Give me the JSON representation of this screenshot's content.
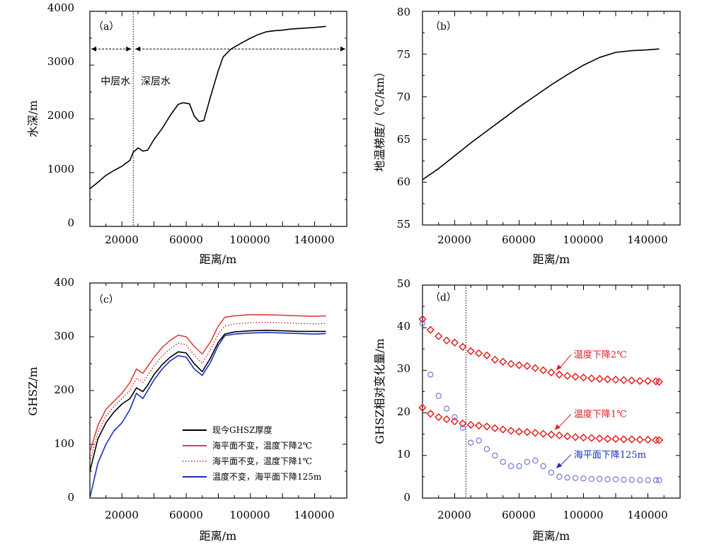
{
  "figure_title": "",
  "chart_data": [
    {
      "id": "a",
      "type": "line",
      "panel_label": "（a）",
      "xlabel": "距离/m",
      "ylabel": "水深/m",
      "xlim": [
        0,
        160000
      ],
      "ylim": [
        0,
        4000
      ],
      "xticks": [
        20000,
        60000,
        100000,
        140000
      ],
      "yticks": [
        0,
        1000,
        2000,
        3000,
        4000
      ],
      "grid": false,
      "divider_x": 27000,
      "range_arrow_y": 3300,
      "region_labels": [
        {
          "text": "中层水",
          "x": 16000,
          "y": 2640
        },
        {
          "text": "深层水",
          "x": 41000,
          "y": 2640
        }
      ],
      "series": [
        {
          "color": "#000000",
          "x": [
            0,
            5000,
            10000,
            15000,
            20000,
            25000,
            27000,
            30000,
            33000,
            36000,
            40000,
            45000,
            50000,
            55000,
            58000,
            62000,
            65000,
            68000,
            71000,
            75000,
            80000,
            83000,
            88000,
            95000,
            100000,
            105000,
            110000,
            115000,
            120000,
            125000,
            130000,
            135000,
            140000,
            147000
          ],
          "y": [
            700,
            820,
            950,
            1040,
            1120,
            1230,
            1380,
            1460,
            1400,
            1420,
            1620,
            1820,
            2060,
            2270,
            2300,
            2280,
            2050,
            1950,
            1970,
            2400,
            2900,
            3150,
            3300,
            3420,
            3500,
            3570,
            3620,
            3640,
            3650,
            3670,
            3680,
            3690,
            3700,
            3720
          ]
        }
      ]
    },
    {
      "id": "b",
      "type": "line",
      "panel_label": "（b）",
      "xlabel": "距离/m",
      "ylabel": "地温梯度/（℃/km）",
      "xlim": [
        0,
        160000
      ],
      "ylim": [
        55,
        80
      ],
      "xticks": [
        20000,
        60000,
        100000,
        140000
      ],
      "yticks": [
        55,
        60,
        65,
        70,
        75,
        80
      ],
      "grid": false,
      "series": [
        {
          "color": "#000000",
          "x": [
            0,
            10000,
            20000,
            30000,
            40000,
            50000,
            60000,
            70000,
            80000,
            90000,
            100000,
            110000,
            120000,
            130000,
            140000,
            147000
          ],
          "y": [
            60.3,
            61.6,
            63.1,
            64.6,
            66.0,
            67.4,
            68.8,
            70.1,
            71.4,
            72.6,
            73.7,
            74.6,
            75.2,
            75.4,
            75.5,
            75.6
          ]
        }
      ]
    },
    {
      "id": "c",
      "type": "line",
      "panel_label": "（c）",
      "xlabel": "距离/m",
      "ylabel": "GHSZ/m",
      "xlim": [
        0,
        160000
      ],
      "ylim": [
        0,
        400
      ],
      "xticks": [
        20000,
        60000,
        100000,
        140000
      ],
      "yticks": [
        0,
        100,
        200,
        300,
        400
      ],
      "grid": false,
      "legend_position": "lower-right",
      "x": [
        0,
        5000,
        10000,
        15000,
        20000,
        25000,
        29000,
        33000,
        36000,
        40000,
        45000,
        50000,
        55000,
        60000,
        65000,
        70000,
        75000,
        80000,
        84000,
        90000,
        100000,
        110000,
        120000,
        130000,
        140000,
        147000
      ],
      "series": [
        {
          "name": "现今GHSZ厚度",
          "color": "#000000",
          "dash": "solid",
          "values": [
            50,
            110,
            140,
            160,
            175,
            185,
            205,
            198,
            210,
            230,
            248,
            262,
            272,
            270,
            250,
            235,
            260,
            290,
            305,
            309,
            311,
            312,
            311,
            310,
            310,
            310
          ]
        },
        {
          "name": "海平面不变，温度下降2℃",
          "color": "#e04040",
          "dash": "solid",
          "values": [
            85,
            135,
            165,
            180,
            195,
            215,
            240,
            232,
            245,
            262,
            280,
            293,
            303,
            300,
            282,
            268,
            290,
            320,
            336,
            339,
            341,
            341,
            340,
            339,
            338,
            339
          ]
        },
        {
          "name": "海平面不变，温度下降1℃",
          "color": "#d02020",
          "dash": "dotted",
          "values": [
            68,
            122,
            152,
            170,
            185,
            200,
            223,
            215,
            228,
            246,
            264,
            278,
            288,
            285,
            266,
            251,
            275,
            305,
            320,
            324,
            326,
            327,
            326,
            325,
            324,
            325
          ]
        },
        {
          "name": "温度不变，海平面下降125m",
          "color": "#1a2fc0",
          "dash": "solid",
          "values": [
            0,
            65,
            100,
            125,
            140,
            165,
            195,
            185,
            200,
            220,
            240,
            255,
            265,
            262,
            240,
            228,
            252,
            284,
            302,
            305,
            307,
            308,
            307,
            306,
            305,
            306
          ]
        }
      ]
    },
    {
      "id": "d",
      "type": "scatter",
      "panel_label": "（d）",
      "xlabel": "距离/m",
      "ylabel": "GHSZ相对变化量/m",
      "xlim": [
        0,
        160000
      ],
      "ylim": [
        0,
        50
      ],
      "xticks": [
        20000,
        60000,
        100000,
        140000
      ],
      "yticks": [
        0,
        10,
        20,
        30,
        40,
        50
      ],
      "grid": false,
      "divider_x": 27000,
      "annotations": [
        {
          "text": "温度下降2℃",
          "color": "#e02020",
          "text_x": 94000,
          "text_y": 33,
          "arrow_to_x": 83000,
          "arrow_to_y": 30
        },
        {
          "text": "温度下降1℃",
          "color": "#e02020",
          "text_x": 94000,
          "text_y": 19,
          "arrow_to_x": 82000,
          "arrow_to_y": 16
        },
        {
          "text": "海平面下降125m",
          "color": "#1a2fc0",
          "text_x": 94000,
          "text_y": 9.5,
          "arrow_to_x": 83000,
          "arrow_to_y": 7
        }
      ],
      "series": [
        {
          "color": "#e02020",
          "marker": "diamond",
          "x": [
            0,
            5000,
            10000,
            15000,
            20000,
            25000,
            30000,
            35000,
            40000,
            45000,
            50000,
            55000,
            60000,
            65000,
            70000,
            75000,
            80000,
            85000,
            90000,
            95000,
            100000,
            105000,
            110000,
            115000,
            120000,
            125000,
            130000,
            135000,
            140000,
            145000,
            147000
          ],
          "y": [
            42,
            39.5,
            38,
            37,
            36.5,
            35.5,
            34.5,
            34,
            33.5,
            32.5,
            32,
            31.5,
            31.2,
            31,
            30.5,
            30,
            29.5,
            29,
            28.7,
            28.5,
            28.3,
            28.1,
            28,
            27.9,
            27.8,
            27.7,
            27.6,
            27.5,
            27.5,
            27.4,
            27.3
          ]
        },
        {
          "color": "#e02020",
          "marker": "diamond",
          "x": [
            0,
            5000,
            10000,
            15000,
            20000,
            25000,
            30000,
            35000,
            40000,
            45000,
            50000,
            55000,
            60000,
            65000,
            70000,
            75000,
            80000,
            85000,
            90000,
            95000,
            100000,
            105000,
            110000,
            115000,
            120000,
            125000,
            130000,
            135000,
            140000,
            145000,
            147000
          ],
          "y": [
            21.2,
            19.8,
            19.0,
            18.5,
            18.0,
            17.5,
            17.2,
            17.0,
            16.8,
            16.4,
            16.1,
            15.8,
            15.6,
            15.5,
            15.3,
            15.1,
            14.9,
            14.7,
            14.5,
            14.3,
            14.2,
            14.1,
            14.0,
            13.9,
            13.9,
            13.8,
            13.8,
            13.7,
            13.7,
            13.6,
            13.6
          ]
        },
        {
          "color": "#5560d0",
          "marker": "circle",
          "x": [
            0,
            5000,
            10000,
            15000,
            20000,
            25000,
            30000,
            35000,
            40000,
            45000,
            50000,
            55000,
            60000,
            65000,
            70000,
            75000,
            80000,
            85000,
            90000,
            95000,
            100000,
            105000,
            110000,
            115000,
            120000,
            125000,
            130000,
            135000,
            140000,
            145000,
            147000
          ],
          "y": [
            41,
            29,
            24,
            21,
            19,
            16.5,
            13,
            13.5,
            11.5,
            10,
            8.5,
            7.5,
            7.5,
            8.5,
            8.8,
            7.5,
            6,
            5,
            4.8,
            4.7,
            4.6,
            4.5,
            4.5,
            4.4,
            4.4,
            4.3,
            4.3,
            4.2,
            4.2,
            4.2,
            4.2
          ]
        }
      ]
    }
  ]
}
